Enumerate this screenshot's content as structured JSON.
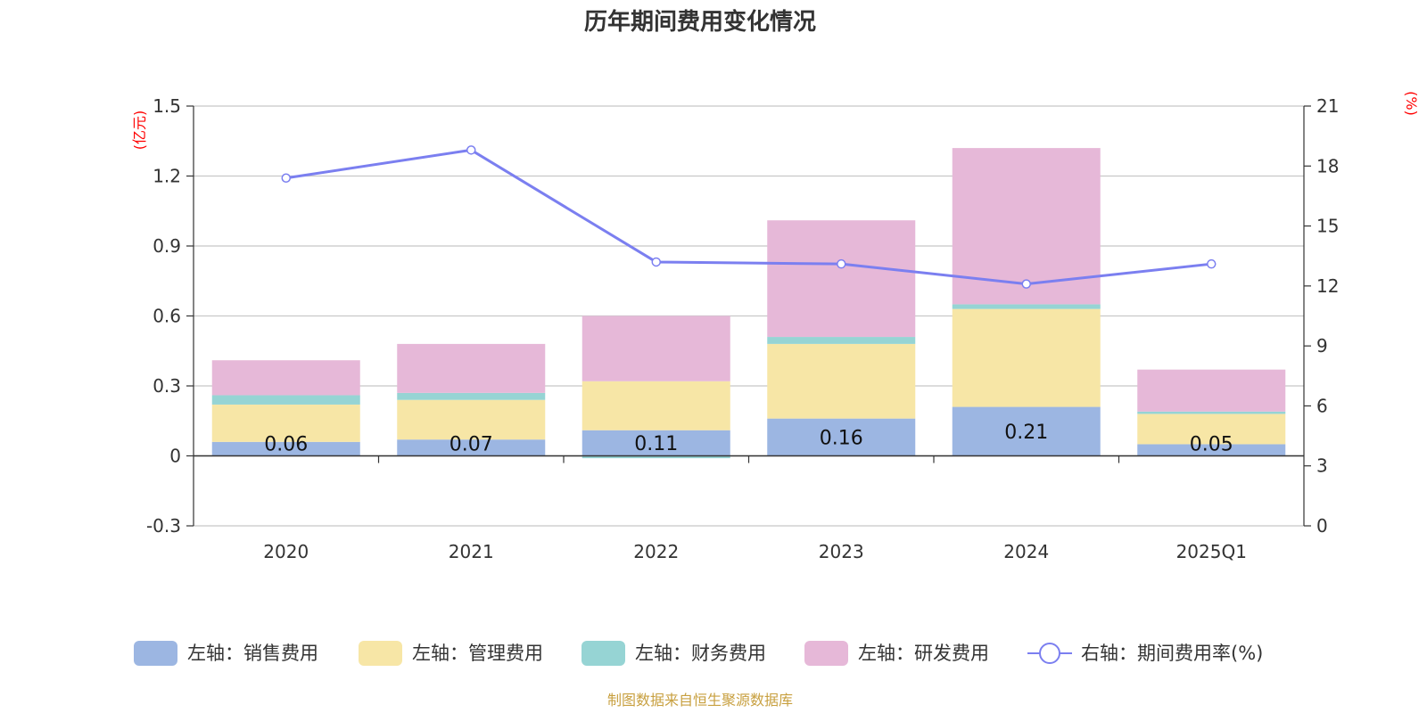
{
  "chart_data": {
    "type": "bar",
    "stacked": true,
    "title": "历年期间费用变化情况",
    "categories": [
      "2020",
      "2021",
      "2022",
      "2023",
      "2024",
      "2025Q1"
    ],
    "series": [
      {
        "name": "左轴：销售费用",
        "axis": "left",
        "color": "#9cb6e2",
        "values": [
          0.06,
          0.07,
          0.11,
          0.16,
          0.21,
          0.05
        ],
        "labels": [
          "0.06",
          "0.07",
          "0.11",
          "0.16",
          "0.21",
          "0.05"
        ]
      },
      {
        "name": "左轴：管理费用",
        "axis": "left",
        "color": "#f7e6a6",
        "values": [
          0.16,
          0.17,
          0.21,
          0.32,
          0.42,
          0.13
        ]
      },
      {
        "name": "左轴：财务费用",
        "axis": "left",
        "color": "#96d4d4",
        "values": [
          0.04,
          0.03,
          -0.01,
          0.03,
          0.02,
          0.01
        ]
      },
      {
        "name": "左轴：研发费用",
        "axis": "left",
        "color": "#e6b8d8",
        "values": [
          0.15,
          0.21,
          0.28,
          0.5,
          0.67,
          0.18
        ]
      }
    ],
    "line": {
      "name": "右轴：期间费用率(%)",
      "axis": "right",
      "color": "#7b7ff0",
      "values": [
        17.4,
        18.8,
        13.2,
        13.1,
        12.1,
        13.1
      ]
    },
    "left_axis": {
      "unit": "(亿元)",
      "min": -0.3,
      "max": 1.5,
      "ticks": [
        "-0.3",
        "0",
        "0.3",
        "0.6",
        "0.9",
        "1.2",
        "1.5"
      ]
    },
    "right_axis": {
      "unit": "(%)",
      "min": 0,
      "max": 21,
      "ticks": [
        "0",
        "3",
        "6",
        "9",
        "12",
        "15",
        "18",
        "21"
      ]
    },
    "legend_position": "bottom",
    "grid": true
  },
  "source_text": "制图数据来自恒生聚源数据库"
}
